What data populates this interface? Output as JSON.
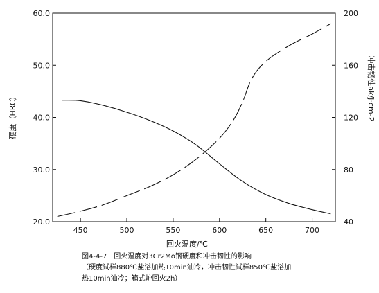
{
  "chart_data": {
    "type": "line",
    "xlabel": "回火温度/℃",
    "ylabel_left": "硬度（HRC）",
    "ylabel_right": "冲击韧性ak/J·cm-2",
    "xlim": [
      420,
      725
    ],
    "ylim_left": [
      20,
      60
    ],
    "ylim_right": [
      40,
      200
    ],
    "x_ticks": [
      "450",
      "500",
      "550",
      "600",
      "650",
      "700"
    ],
    "y_left_ticks": [
      "20.0",
      "30.0",
      "40.0",
      "50.0",
      "60.0"
    ],
    "y_right_ticks": [
      "40",
      "80",
      "120",
      "160",
      "200"
    ],
    "series": [
      {
        "axis": "left",
        "style": "solid",
        "x": [
          430,
          450,
          475,
          500,
          525,
          550,
          575,
          600,
          625,
          650,
          675,
          700,
          720
        ],
        "y": [
          43.3,
          43.2,
          42.3,
          41.0,
          39.4,
          37.4,
          34.7,
          31.1,
          27.7,
          25.2,
          23.5,
          22.3,
          21.5
        ]
      },
      {
        "axis": "right",
        "style": "dashed",
        "x": [
          425,
          450,
          475,
          500,
          525,
          550,
          575,
          600,
          615,
          625,
          635,
          650,
          675,
          700,
          720
        ],
        "y": [
          44,
          48,
          53,
          60,
          67,
          76,
          88,
          104,
          118,
          132,
          150,
          163,
          175,
          184,
          192
        ]
      }
    ],
    "caption": {
      "title": "图4-4-7　回火温度对3Cr2Mo钢硬度和冲击韧性的影响",
      "line1": "（硬度试样880℃盐浴加热10min油冷，冲击韧性试样850℃盐浴加",
      "line2": "热10min油冷；箱式炉回火2h）"
    }
  }
}
